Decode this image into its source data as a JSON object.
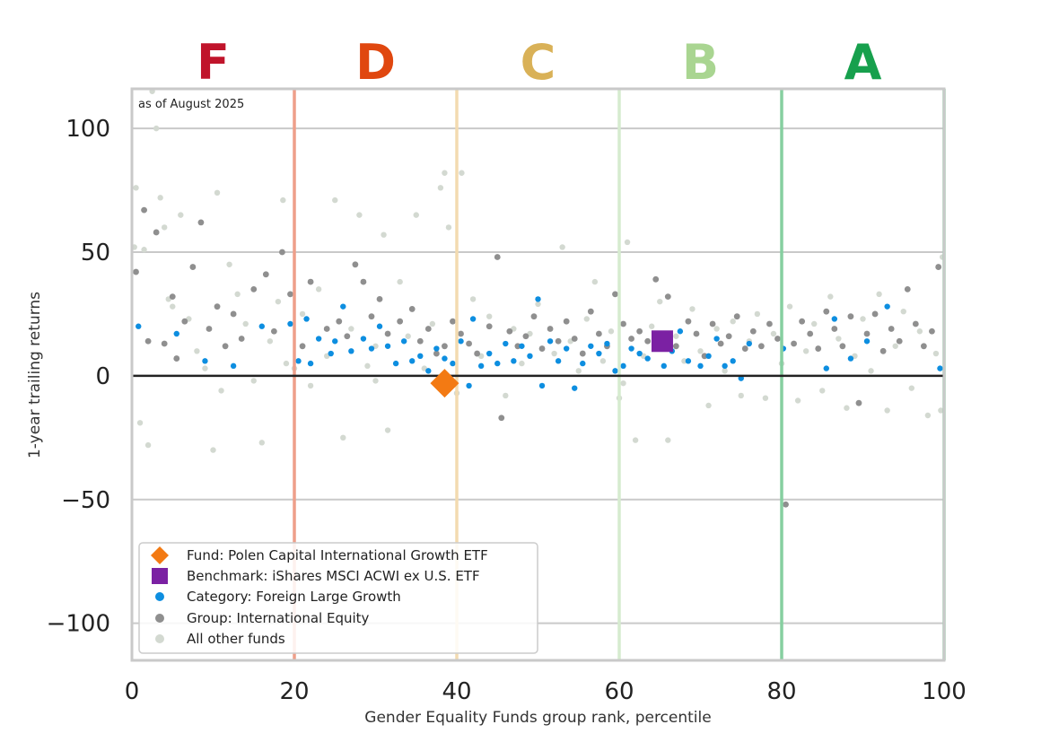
{
  "chart_data": {
    "type": "scatter",
    "note": "as of August 2025",
    "xlabel": "Gender Equality Funds group rank, percentile",
    "ylabel": "1-year trailing returns",
    "xlim": [
      0,
      100
    ],
    "ylim": [
      -115,
      116
    ],
    "x_ticks": [
      0,
      20,
      40,
      60,
      80,
      100
    ],
    "y_ticks": [
      100,
      50,
      0,
      -50,
      -100
    ],
    "y_tick_labels": [
      "100",
      "50",
      "0",
      "−50",
      "−100"
    ],
    "grid": "horizontal",
    "legend_position": "bottom-left",
    "grade_bands": [
      {
        "label": "F",
        "from": 0,
        "to": 20,
        "color": "#c0142b",
        "line_color": "#ee9f8a"
      },
      {
        "label": "D",
        "from": 20,
        "to": 40,
        "color": "#e0470f",
        "line_color": "#f3dbb0"
      },
      {
        "label": "C",
        "from": 40,
        "to": 60,
        "color": "#d9b157",
        "line_color": "#d6ebcf"
      },
      {
        "label": "B",
        "from": 60,
        "to": 80,
        "color": "#a9d591",
        "line_color": "#86cfa0"
      },
      {
        "label": "A",
        "from": 80,
        "to": 100,
        "color": "#17a04d",
        "line_color": "#86cfa0"
      }
    ],
    "band_boundaries": [
      20,
      40,
      60,
      80,
      100
    ],
    "series": [
      {
        "name": "Fund: Polen Capital International Growth ETF",
        "marker": "diamond",
        "color": "#f37a13",
        "points": [
          [
            38.5,
            -3
          ]
        ]
      },
      {
        "name": "Benchmark: iShares MSCI ACWI ex U.S. ETF",
        "marker": "square",
        "color": "#7b21a3",
        "points": [
          [
            65.3,
            14
          ]
        ]
      },
      {
        "name": "Category: Foreign Large Growth",
        "marker": "circle",
        "color": "#0d8ee0",
        "points": [
          [
            0.8,
            20
          ],
          [
            5.5,
            17
          ],
          [
            9,
            6
          ],
          [
            12.5,
            4
          ],
          [
            16,
            20
          ],
          [
            19.5,
            21
          ],
          [
            20.5,
            6
          ],
          [
            21.5,
            23
          ],
          [
            22,
            5
          ],
          [
            23,
            15
          ],
          [
            24.5,
            9
          ],
          [
            25,
            14
          ],
          [
            26,
            28
          ],
          [
            27,
            10
          ],
          [
            28.5,
            15
          ],
          [
            29.5,
            11
          ],
          [
            30.5,
            20
          ],
          [
            31.5,
            12
          ],
          [
            32.5,
            5
          ],
          [
            33.5,
            14
          ],
          [
            34.5,
            6
          ],
          [
            35.5,
            8
          ],
          [
            36.5,
            2
          ],
          [
            37.5,
            11
          ],
          [
            38.5,
            7
          ],
          [
            39.5,
            5
          ],
          [
            40.5,
            14
          ],
          [
            41.5,
            -4
          ],
          [
            42,
            23
          ],
          [
            43,
            4
          ],
          [
            44,
            9
          ],
          [
            45,
            5
          ],
          [
            46,
            13
          ],
          [
            47,
            6
          ],
          [
            48,
            12
          ],
          [
            49,
            8
          ],
          [
            50,
            31
          ],
          [
            50.5,
            -4
          ],
          [
            51.5,
            14
          ],
          [
            52.5,
            6
          ],
          [
            53.5,
            11
          ],
          [
            54.5,
            -5
          ],
          [
            55.5,
            5
          ],
          [
            56.5,
            12
          ],
          [
            57.5,
            9
          ],
          [
            58.5,
            13
          ],
          [
            59.5,
            2
          ],
          [
            60.5,
            4
          ],
          [
            61.5,
            11
          ],
          [
            62.5,
            9
          ],
          [
            63.5,
            7
          ],
          [
            64.5,
            11
          ],
          [
            65.5,
            4
          ],
          [
            66.5,
            10
          ],
          [
            67.5,
            18
          ],
          [
            68.5,
            6
          ],
          [
            70,
            4
          ],
          [
            71,
            8
          ],
          [
            72,
            15
          ],
          [
            73,
            4
          ],
          [
            74,
            6
          ],
          [
            75,
            -1
          ],
          [
            76,
            13
          ],
          [
            80.2,
            11
          ],
          [
            85.5,
            3
          ],
          [
            86.5,
            23
          ],
          [
            88.5,
            7
          ],
          [
            90.5,
            14
          ],
          [
            93,
            28
          ],
          [
            99.5,
            3
          ]
        ]
      },
      {
        "name": "Group: International Equity",
        "marker": "circle",
        "color": "#8f8f8f",
        "points": [
          [
            0.5,
            42
          ],
          [
            1.5,
            67
          ],
          [
            2,
            14
          ],
          [
            3,
            58
          ],
          [
            4,
            13
          ],
          [
            5,
            32
          ],
          [
            5.5,
            7
          ],
          [
            6.5,
            22
          ],
          [
            7.5,
            44
          ],
          [
            8.5,
            62
          ],
          [
            9.5,
            19
          ],
          [
            10.5,
            28
          ],
          [
            11.5,
            12
          ],
          [
            12.5,
            25
          ],
          [
            13.5,
            15
          ],
          [
            15,
            35
          ],
          [
            16.5,
            41
          ],
          [
            17.5,
            18
          ],
          [
            18.5,
            50
          ],
          [
            19.5,
            33
          ],
          [
            21,
            12
          ],
          [
            22,
            38
          ],
          [
            24,
            19
          ],
          [
            25.5,
            22
          ],
          [
            26.5,
            16
          ],
          [
            27.5,
            45
          ],
          [
            28.5,
            38
          ],
          [
            29.5,
            24
          ],
          [
            30.5,
            31
          ],
          [
            31.5,
            17
          ],
          [
            33,
            22
          ],
          [
            34.5,
            27
          ],
          [
            35.5,
            14
          ],
          [
            36.5,
            19
          ],
          [
            37.5,
            9
          ],
          [
            38.5,
            12
          ],
          [
            39.5,
            22
          ],
          [
            40.5,
            17
          ],
          [
            41.5,
            13
          ],
          [
            42.5,
            9
          ],
          [
            44,
            20
          ],
          [
            45,
            48
          ],
          [
            45.5,
            -17
          ],
          [
            46.5,
            18
          ],
          [
            47.5,
            12
          ],
          [
            48.5,
            16
          ],
          [
            49.5,
            24
          ],
          [
            50.5,
            11
          ],
          [
            51.5,
            19
          ],
          [
            52.5,
            14
          ],
          [
            53.5,
            22
          ],
          [
            54.5,
            15
          ],
          [
            55.5,
            9
          ],
          [
            56.5,
            26
          ],
          [
            57.5,
            17
          ],
          [
            58.5,
            12
          ],
          [
            59.5,
            33
          ],
          [
            60.5,
            21
          ],
          [
            61.5,
            15
          ],
          [
            62.5,
            18
          ],
          [
            63.5,
            14
          ],
          [
            64.5,
            39
          ],
          [
            66,
            32
          ],
          [
            67,
            12
          ],
          [
            68.5,
            22
          ],
          [
            69.5,
            17
          ],
          [
            70.5,
            8
          ],
          [
            71.5,
            21
          ],
          [
            72.5,
            13
          ],
          [
            73.5,
            16
          ],
          [
            74.5,
            24
          ],
          [
            75.5,
            11
          ],
          [
            76.5,
            18
          ],
          [
            77.5,
            12
          ],
          [
            78.5,
            21
          ],
          [
            79.5,
            15
          ],
          [
            80.5,
            -52
          ],
          [
            81.5,
            13
          ],
          [
            82.5,
            22
          ],
          [
            83.5,
            17
          ],
          [
            84.5,
            11
          ],
          [
            85.5,
            26
          ],
          [
            86.5,
            19
          ],
          [
            87.5,
            12
          ],
          [
            88.5,
            24
          ],
          [
            89.5,
            -11
          ],
          [
            90.5,
            17
          ],
          [
            91.5,
            25
          ],
          [
            92.5,
            10
          ],
          [
            93.5,
            19
          ],
          [
            94.5,
            14
          ],
          [
            95.5,
            35
          ],
          [
            96.5,
            21
          ],
          [
            97.5,
            12
          ],
          [
            98.5,
            18
          ],
          [
            99.3,
            44
          ]
        ]
      },
      {
        "name": "All other funds",
        "marker": "circle",
        "color": "#d3d9d1",
        "points": [
          [
            0.5,
            76
          ],
          [
            1,
            -19
          ],
          [
            1.5,
            51
          ],
          [
            2,
            -28
          ],
          [
            2.5,
            115
          ],
          [
            3,
            100
          ],
          [
            3.5,
            72
          ],
          [
            4,
            60
          ],
          [
            4.5,
            31
          ],
          [
            5,
            28
          ],
          [
            6,
            65
          ],
          [
            7,
            23
          ],
          [
            8,
            10
          ],
          [
            9,
            3
          ],
          [
            10,
            -30
          ],
          [
            10.5,
            74
          ],
          [
            11,
            -6
          ],
          [
            12,
            45
          ],
          [
            13,
            33
          ],
          [
            14,
            21
          ],
          [
            15,
            -2
          ],
          [
            16,
            -27
          ],
          [
            17,
            14
          ],
          [
            18,
            30
          ],
          [
            19,
            5
          ],
          [
            20,
            3
          ],
          [
            21,
            25
          ],
          [
            22,
            -4
          ],
          [
            23,
            35
          ],
          [
            24,
            8
          ],
          [
            25,
            71
          ],
          [
            26,
            -25
          ],
          [
            27,
            19
          ],
          [
            28,
            65
          ],
          [
            29,
            4
          ],
          [
            30,
            12
          ],
          [
            31,
            57
          ],
          [
            31.5,
            -22
          ],
          [
            33,
            38
          ],
          [
            34,
            16
          ],
          [
            35,
            65
          ],
          [
            36,
            3
          ],
          [
            37,
            21
          ],
          [
            38,
            76
          ],
          [
            38.5,
            82
          ],
          [
            39,
            60
          ],
          [
            40,
            -7
          ],
          [
            42,
            31
          ],
          [
            43,
            8
          ],
          [
            44,
            24
          ],
          [
            46,
            -8
          ],
          [
            47,
            19
          ],
          [
            48,
            5
          ],
          [
            49,
            17
          ],
          [
            50,
            29
          ],
          [
            52,
            9
          ],
          [
            53,
            52
          ],
          [
            54,
            14
          ],
          [
            55,
            2
          ],
          [
            56,
            23
          ],
          [
            57,
            38
          ],
          [
            58,
            6
          ],
          [
            59,
            18
          ],
          [
            60,
            -9
          ],
          [
            61,
            54
          ],
          [
            62,
            -26
          ],
          [
            63,
            8
          ],
          [
            64,
            20
          ],
          [
            65,
            30
          ],
          [
            66,
            -26
          ],
          [
            67,
            16
          ],
          [
            68,
            6
          ],
          [
            69,
            27
          ],
          [
            70,
            10
          ],
          [
            71,
            -12
          ],
          [
            72,
            19
          ],
          [
            73,
            2
          ],
          [
            74,
            22
          ],
          [
            75,
            -8
          ],
          [
            76,
            14
          ],
          [
            77,
            25
          ],
          [
            78,
            -9
          ],
          [
            79,
            17
          ],
          [
            80,
            5
          ],
          [
            81,
            28
          ],
          [
            82,
            -10
          ],
          [
            83,
            10
          ],
          [
            84,
            21
          ],
          [
            85,
            -6
          ],
          [
            86,
            32
          ],
          [
            87,
            15
          ],
          [
            88,
            -13
          ],
          [
            89,
            8
          ],
          [
            90,
            23
          ],
          [
            91,
            2
          ],
          [
            92,
            33
          ],
          [
            93,
            -14
          ],
          [
            94,
            12
          ],
          [
            95,
            26
          ],
          [
            96,
            -5
          ],
          [
            97,
            18
          ],
          [
            98,
            -16
          ],
          [
            99,
            9
          ],
          [
            99.8,
            48
          ],
          [
            99.6,
            -14
          ],
          [
            0.3,
            52
          ],
          [
            18.6,
            71
          ],
          [
            40.6,
            82
          ],
          [
            30,
            -2
          ],
          [
            60.5,
            -3
          ]
        ]
      }
    ]
  }
}
